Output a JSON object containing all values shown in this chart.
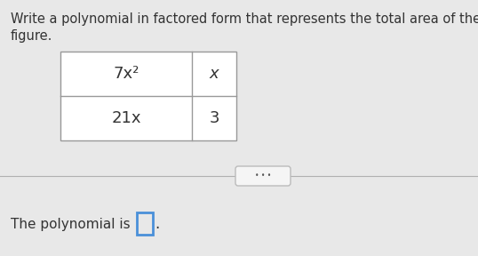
{
  "title_line1": "Write a polynomial in factored form that represents the total area of the",
  "title_line2": "figure.",
  "cell_top_left": "7x²",
  "cell_top_right": "x",
  "cell_bottom_left": "21x",
  "cell_bottom_right": "3",
  "answer_label": "The polynomial is",
  "background_color": "#e8e8e8",
  "text_color": "#333333",
  "border_color": "#999999",
  "answer_box_color": "#4a90d9",
  "divider_line_color": "#b0b0b0",
  "dots_color": "#555555",
  "dots_bg": "#f5f5f5",
  "dots_border": "#bbbbbb"
}
